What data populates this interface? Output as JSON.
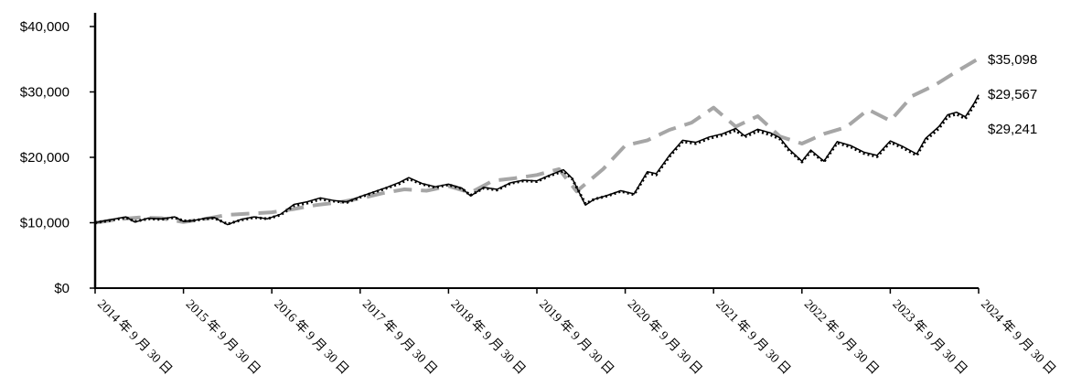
{
  "chart_data": {
    "type": "line",
    "title": "",
    "xlabel": "",
    "ylabel": "",
    "ylim": [
      0,
      40000
    ],
    "grid": false,
    "legend": "none",
    "y_ticks": [
      "$0",
      "$10,000",
      "$20,000",
      "$30,000",
      "$40,000"
    ],
    "y_tick_values": [
      0,
      10000,
      20000,
      30000,
      40000
    ],
    "x_ticks": [
      "2014 年 9 月 30 日",
      "2015 年 9 月 30 日",
      "2016 年 9 月 30 日",
      "2017 年 9 月 30 日",
      "2018 年 9 月 30 日",
      "2019 年 9 月 30 日",
      "2020 年 9 月 30 日",
      "2021 年 9 月 30 日",
      "2022 年 9 月 30 日",
      "2023 年 9 月 30 日",
      "2024 年 9 月 30 日"
    ],
    "x_tick_values": [
      2014.75,
      2015.75,
      2016.75,
      2017.75,
      2018.75,
      2019.75,
      2020.75,
      2021.75,
      2022.75,
      2023.75,
      2024.75
    ],
    "end_labels": [
      "$35,098",
      "$29,567",
      "$29,241"
    ],
    "series": [
      {
        "color": "#a6a6a6",
        "style": "dashed",
        "points": [
          [
            2014.75,
            10000
          ],
          [
            2015.0,
            10500
          ],
          [
            2015.25,
            10800
          ],
          [
            2015.5,
            10700
          ],
          [
            2015.75,
            10100
          ],
          [
            2016.0,
            10600
          ],
          [
            2016.25,
            11200
          ],
          [
            2016.5,
            11400
          ],
          [
            2016.75,
            11600
          ],
          [
            2017.0,
            12100
          ],
          [
            2017.25,
            12700
          ],
          [
            2017.5,
            13100
          ],
          [
            2017.75,
            13700
          ],
          [
            2018.0,
            14500
          ],
          [
            2018.25,
            15100
          ],
          [
            2018.5,
            14900
          ],
          [
            2018.75,
            15600
          ],
          [
            2019.0,
            14600
          ],
          [
            2019.25,
            16400
          ],
          [
            2019.5,
            16800
          ],
          [
            2019.75,
            17300
          ],
          [
            2020.0,
            18200
          ],
          [
            2020.2,
            14800
          ],
          [
            2020.5,
            18200
          ],
          [
            2020.75,
            21800
          ],
          [
            2021.0,
            22600
          ],
          [
            2021.25,
            24200
          ],
          [
            2021.5,
            25300
          ],
          [
            2021.75,
            27600
          ],
          [
            2022.0,
            24700
          ],
          [
            2022.25,
            26300
          ],
          [
            2022.5,
            23200
          ],
          [
            2022.75,
            22100
          ],
          [
            2023.0,
            23600
          ],
          [
            2023.25,
            24600
          ],
          [
            2023.5,
            27300
          ],
          [
            2023.75,
            25600
          ],
          [
            2024.0,
            29400
          ],
          [
            2024.25,
            31000
          ],
          [
            2024.5,
            33100
          ],
          [
            2024.75,
            35098
          ]
        ]
      },
      {
        "color": "#000000",
        "style": "solid",
        "points": [
          [
            2014.75,
            10000
          ],
          [
            2014.9,
            10400
          ],
          [
            2015.1,
            10900
          ],
          [
            2015.2,
            10100
          ],
          [
            2015.35,
            10700
          ],
          [
            2015.5,
            10600
          ],
          [
            2015.65,
            10900
          ],
          [
            2015.75,
            10200
          ],
          [
            2015.85,
            10300
          ],
          [
            2016.0,
            10700
          ],
          [
            2016.1,
            10800
          ],
          [
            2016.25,
            9700
          ],
          [
            2016.4,
            10500
          ],
          [
            2016.55,
            10900
          ],
          [
            2016.7,
            10600
          ],
          [
            2016.85,
            11300
          ],
          [
            2017.0,
            12800
          ],
          [
            2017.15,
            13200
          ],
          [
            2017.3,
            13800
          ],
          [
            2017.45,
            13400
          ],
          [
            2017.6,
            13200
          ],
          [
            2017.75,
            14000
          ],
          [
            2017.9,
            14700
          ],
          [
            2018.05,
            15400
          ],
          [
            2018.2,
            16200
          ],
          [
            2018.3,
            16900
          ],
          [
            2018.45,
            16000
          ],
          [
            2018.6,
            15500
          ],
          [
            2018.75,
            15900
          ],
          [
            2018.9,
            15300
          ],
          [
            2019.0,
            14100
          ],
          [
            2019.15,
            15400
          ],
          [
            2019.3,
            15100
          ],
          [
            2019.45,
            16100
          ],
          [
            2019.6,
            16500
          ],
          [
            2019.75,
            16400
          ],
          [
            2019.9,
            17300
          ],
          [
            2020.05,
            18100
          ],
          [
            2020.15,
            16800
          ],
          [
            2020.3,
            12700
          ],
          [
            2020.4,
            13600
          ],
          [
            2020.55,
            14200
          ],
          [
            2020.7,
            14900
          ],
          [
            2020.85,
            14400
          ],
          [
            2021.0,
            17800
          ],
          [
            2021.1,
            17500
          ],
          [
            2021.25,
            20300
          ],
          [
            2021.4,
            22600
          ],
          [
            2021.55,
            22300
          ],
          [
            2021.7,
            23100
          ],
          [
            2021.85,
            23600
          ],
          [
            2022.0,
            24400
          ],
          [
            2022.1,
            23300
          ],
          [
            2022.25,
            24300
          ],
          [
            2022.4,
            23700
          ],
          [
            2022.5,
            23000
          ],
          [
            2022.6,
            21300
          ],
          [
            2022.75,
            19400
          ],
          [
            2022.85,
            21100
          ],
          [
            2023.0,
            19400
          ],
          [
            2023.15,
            22400
          ],
          [
            2023.3,
            21800
          ],
          [
            2023.45,
            20800
          ],
          [
            2023.6,
            20300
          ],
          [
            2023.75,
            22500
          ],
          [
            2023.9,
            21600
          ],
          [
            2024.05,
            20500
          ],
          [
            2024.15,
            22900
          ],
          [
            2024.3,
            24700
          ],
          [
            2024.4,
            26500
          ],
          [
            2024.5,
            26900
          ],
          [
            2024.6,
            26200
          ],
          [
            2024.7,
            28300
          ],
          [
            2024.75,
            29567
          ]
        ]
      },
      {
        "color": "#000000",
        "style": "dotted",
        "points": [
          [
            2014.75,
            10000
          ],
          [
            2014.9,
            10300
          ],
          [
            2015.1,
            10800
          ],
          [
            2015.2,
            10200
          ],
          [
            2015.35,
            10600
          ],
          [
            2015.5,
            10500
          ],
          [
            2015.65,
            10800
          ],
          [
            2015.75,
            10300
          ],
          [
            2015.85,
            10300
          ],
          [
            2016.0,
            10600
          ],
          [
            2016.1,
            10700
          ],
          [
            2016.25,
            9800
          ],
          [
            2016.4,
            10400
          ],
          [
            2016.55,
            10800
          ],
          [
            2016.7,
            10600
          ],
          [
            2016.85,
            11200
          ],
          [
            2017.0,
            12600
          ],
          [
            2017.15,
            13000
          ],
          [
            2017.3,
            13600
          ],
          [
            2017.45,
            13300
          ],
          [
            2017.6,
            13100
          ],
          [
            2017.75,
            13900
          ],
          [
            2017.9,
            14600
          ],
          [
            2018.05,
            15300
          ],
          [
            2018.2,
            16000
          ],
          [
            2018.3,
            16700
          ],
          [
            2018.45,
            15900
          ],
          [
            2018.6,
            15400
          ],
          [
            2018.75,
            15800
          ],
          [
            2018.9,
            15200
          ],
          [
            2019.0,
            14200
          ],
          [
            2019.15,
            15300
          ],
          [
            2019.3,
            15000
          ],
          [
            2019.45,
            16000
          ],
          [
            2019.6,
            16400
          ],
          [
            2019.75,
            16300
          ],
          [
            2019.9,
            17200
          ],
          [
            2020.05,
            17900
          ],
          [
            2020.15,
            16700
          ],
          [
            2020.3,
            12900
          ],
          [
            2020.4,
            13600
          ],
          [
            2020.55,
            14100
          ],
          [
            2020.7,
            14800
          ],
          [
            2020.85,
            14300
          ],
          [
            2021.0,
            17600
          ],
          [
            2021.1,
            17300
          ],
          [
            2021.25,
            20100
          ],
          [
            2021.4,
            22400
          ],
          [
            2021.55,
            22100
          ],
          [
            2021.7,
            22900
          ],
          [
            2021.85,
            23400
          ],
          [
            2022.0,
            24100
          ],
          [
            2022.1,
            23100
          ],
          [
            2022.25,
            24000
          ],
          [
            2022.4,
            23400
          ],
          [
            2022.5,
            22800
          ],
          [
            2022.6,
            21100
          ],
          [
            2022.75,
            19300
          ],
          [
            2022.85,
            20900
          ],
          [
            2023.0,
            19300
          ],
          [
            2023.15,
            22200
          ],
          [
            2023.3,
            21600
          ],
          [
            2023.45,
            20600
          ],
          [
            2023.6,
            20100
          ],
          [
            2023.75,
            22300
          ],
          [
            2023.9,
            21400
          ],
          [
            2024.05,
            20300
          ],
          [
            2024.15,
            22600
          ],
          [
            2024.3,
            24400
          ],
          [
            2024.4,
            26200
          ],
          [
            2024.5,
            26600
          ],
          [
            2024.6,
            25900
          ],
          [
            2024.7,
            28000
          ],
          [
            2024.75,
            29241
          ]
        ]
      }
    ]
  }
}
